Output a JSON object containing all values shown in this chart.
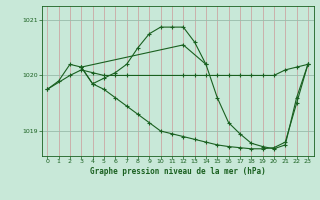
{
  "bg_color": "#c8e8d8",
  "line_color": "#1a6020",
  "grid_v_color": "#cc9999",
  "grid_h_color": "#99bbaa",
  "xlabel": "Graphe pression niveau de la mer (hPa)",
  "xlim": [
    -0.5,
    23.5
  ],
  "ylim": [
    1018.55,
    1021.25
  ],
  "yticks": [
    1019,
    1020,
    1021
  ],
  "xticks": [
    0,
    1,
    2,
    3,
    4,
    5,
    6,
    7,
    8,
    9,
    10,
    11,
    12,
    13,
    14,
    15,
    16,
    17,
    18,
    19,
    20,
    21,
    22,
    23
  ],
  "series": [
    {
      "x": [
        0,
        1,
        2,
        3,
        4,
        5,
        6,
        7,
        8,
        9,
        10,
        11,
        12,
        13,
        14
      ],
      "y": [
        1019.75,
        1019.9,
        1020.2,
        1020.15,
        1019.85,
        1019.95,
        1020.05,
        1020.2,
        1020.5,
        1020.75,
        1020.87,
        1020.87,
        1020.87,
        1020.6,
        1020.2
      ]
    },
    {
      "x": [
        0,
        2,
        3,
        4,
        5,
        6,
        7,
        12,
        13,
        14,
        15,
        16,
        17,
        18,
        19,
        20,
        21,
        22,
        23
      ],
      "y": [
        1019.75,
        1020.0,
        1020.1,
        1020.05,
        1020.0,
        1020.0,
        1020.0,
        1020.0,
        1020.0,
        1020.0,
        1020.0,
        1020.0,
        1020.0,
        1020.0,
        1020.0,
        1020.0,
        1020.1,
        1020.15,
        1020.2
      ]
    },
    {
      "x": [
        3,
        4,
        5,
        6,
        7,
        8,
        9,
        10,
        11,
        12,
        13,
        14,
        15,
        16,
        17,
        18,
        19,
        20,
        21,
        22,
        23
      ],
      "y": [
        1020.15,
        1019.85,
        1019.75,
        1019.6,
        1019.45,
        1019.3,
        1019.15,
        1019.0,
        1018.95,
        1018.9,
        1018.85,
        1018.8,
        1018.75,
        1018.72,
        1018.7,
        1018.68,
        1018.68,
        1018.7,
        1018.8,
        1019.5,
        1020.2
      ]
    },
    {
      "x": [
        3,
        12,
        14,
        15,
        16,
        17,
        18,
        19,
        20,
        21,
        22,
        23
      ],
      "y": [
        1020.15,
        1020.55,
        1020.2,
        1019.6,
        1019.15,
        1018.95,
        1018.78,
        1018.72,
        1018.68,
        1018.75,
        1019.6,
        1020.2
      ]
    }
  ]
}
